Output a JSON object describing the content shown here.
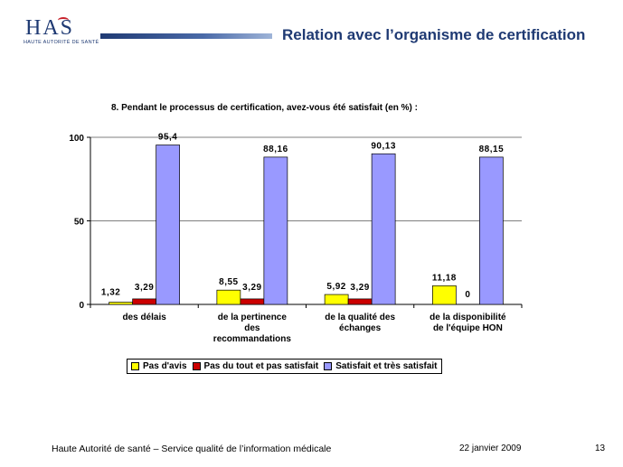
{
  "header": {
    "logo_text": "HAS",
    "logo_subtitle": "HAUTE AUTORITÉ DE SANTÉ",
    "title": "Relation avec l’organisme de certification"
  },
  "chart_data": {
    "type": "bar",
    "title": "8. Pendant le processus de certification, avez-vous été satisfait (en %) :",
    "categories": [
      "des délais",
      "de la pertinence des recommandations",
      "de la qualité des échanges",
      "de la disponibilité de l'équipe HON"
    ],
    "category_lines": [
      [
        "des délais"
      ],
      [
        "de la pertinence",
        "des",
        "recommandations"
      ],
      [
        "de la qualité des",
        "échanges"
      ],
      [
        "de la disponibilité",
        "de l'équipe HON"
      ]
    ],
    "series": [
      {
        "name": "Pas d'avis",
        "color": "#ffff00",
        "values": [
          1.32,
          8.55,
          5.92,
          11.18
        ],
        "labels": [
          "1,32",
          "8,55",
          "5,92",
          "11,18"
        ]
      },
      {
        "name": "Pas du tout et pas satisfait",
        "color": "#cc0000",
        "values": [
          3.29,
          3.29,
          3.29,
          0
        ],
        "labels": [
          "3,29",
          "3,29",
          "3,29",
          "0"
        ]
      },
      {
        "name": "Satisfait et très satisfait",
        "color": "#9999ff",
        "values": [
          95.4,
          88.16,
          90.13,
          88.15
        ],
        "labels": [
          "95,4",
          "88,16",
          "90,13",
          "88,15"
        ]
      }
    ],
    "ylim": [
      0,
      100
    ],
    "yticks": [
      0,
      50,
      100
    ],
    "grid": true,
    "legend_position": "bottom"
  },
  "footer": {
    "left": "Haute Autorité de santé –  Service qualité de l’information médicale",
    "date": "22 janvier 2009",
    "page": "13"
  }
}
